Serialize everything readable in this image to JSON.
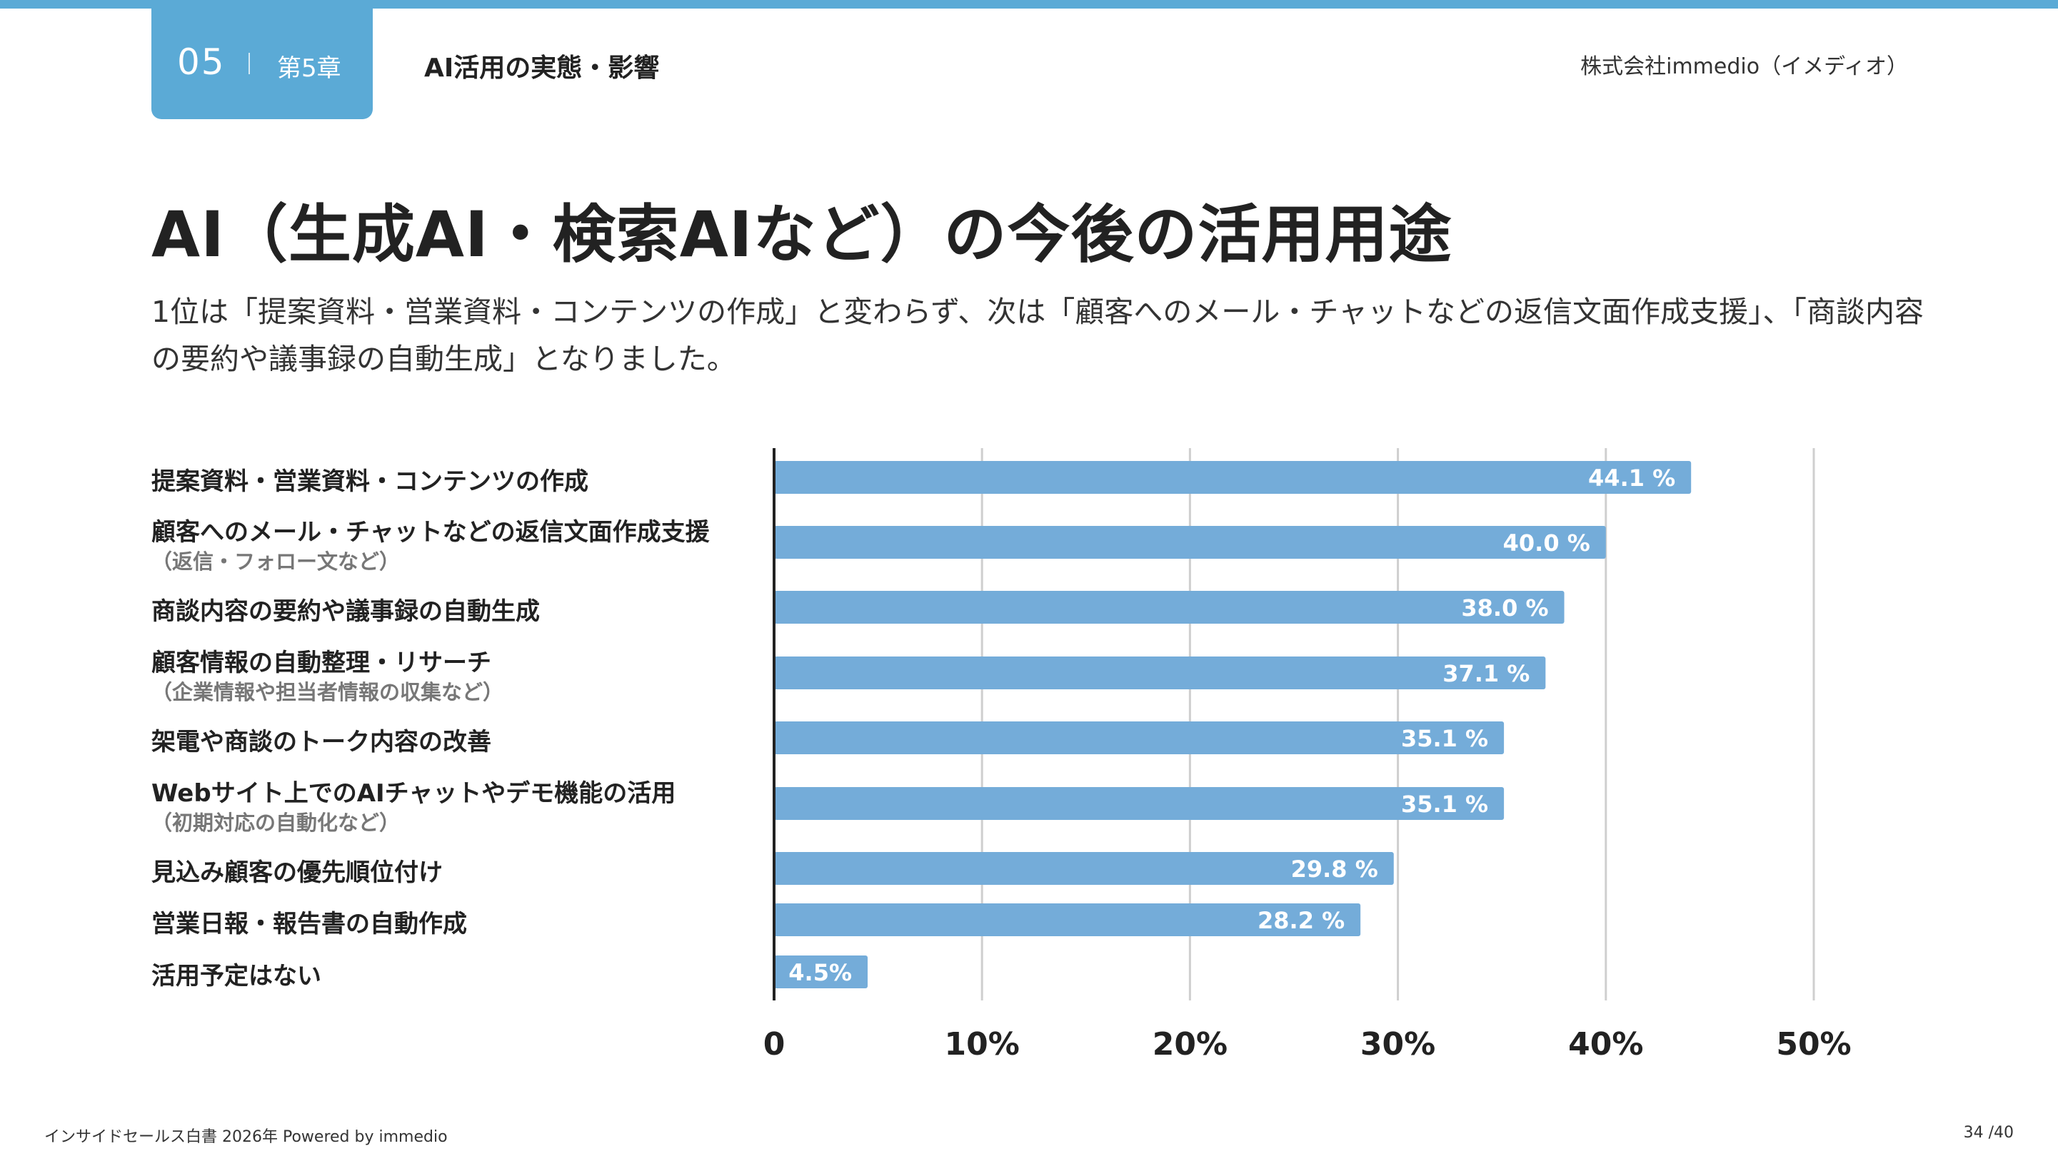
{
  "header": {
    "chapter_number": "05",
    "chapter_label": "第5章",
    "section_title": "AI活用の実態・影響",
    "company": "株式会社immedio（イメディオ）"
  },
  "main_title": "AI（生成AI・検索AIなど）の今後の活用用途",
  "subtitle": "1位は「提案資料・営業資料・コンテンツの作成」と変わらず、次は「顧客へのメール・チャットなどの返信文面作成支援」、「商談内容の要約や議事録の自動生成」となりました。",
  "categories": [
    {
      "main": "提案資料・営業資料・コンテンツの作成",
      "sub": ""
    },
    {
      "main": "顧客へのメール・チャットなどの返信文面作成支援",
      "sub": "（返信・フォロー文など）"
    },
    {
      "main": "商談内容の要約や議事録の自動生成",
      "sub": ""
    },
    {
      "main": "顧客情報の自動整理・リサーチ",
      "sub": "（企業情報や担当者情報の収集など）"
    },
    {
      "main": "架電や商談のトーク内容の改善",
      "sub": ""
    },
    {
      "main": "Webサイト上でのAIチャットやデモ機能の活用",
      "sub": "（初期対応の自動化など）"
    },
    {
      "main": "見込み顧客の優先順位付け",
      "sub": ""
    },
    {
      "main": "営業日報・報告書の自動作成",
      "sub": ""
    },
    {
      "main": "活用予定はない",
      "sub": ""
    }
  ],
  "chart_data": {
    "type": "bar",
    "orientation": "horizontal",
    "categories": [
      "提案資料・営業資料・コンテンツの作成",
      "顧客へのメール・チャットなどの返信文面作成支援（返信・フォロー文など）",
      "商談内容の要約や議事録の自動生成",
      "顧客情報の自動整理・リサーチ（企業情報や担当者情報の収集など）",
      "架電や商談のトーク内容の改善",
      "Webサイト上でのAIチャットやデモ機能の活用（初期対応の自動化など）",
      "見込み顧客の優先順位付け",
      "営業日報・報告書の自動作成",
      "活用予定はない"
    ],
    "values": [
      44.1,
      40.0,
      38.0,
      37.1,
      35.1,
      35.1,
      29.8,
      28.2,
      4.5
    ],
    "value_labels": [
      "44.1 %",
      "40.0 %",
      "38.0 %",
      "37.1 %",
      "35.1 %",
      "35.1 %",
      "29.8 %",
      "28.2 %",
      "4.5%"
    ],
    "xlim": [
      0,
      50
    ],
    "xticks": [
      0,
      10,
      20,
      30,
      40,
      50
    ],
    "xtick_labels": [
      "0",
      "10%",
      "20%",
      "30%",
      "40%",
      "50%"
    ],
    "grid": true,
    "title": "",
    "xlabel": "",
    "ylabel": ""
  },
  "colors": {
    "accent": "#5baad6",
    "bar": "#74acd9",
    "grid": "#cfcfcf",
    "axis": "#222222",
    "bar_label": "#ffffff"
  },
  "footer": {
    "left": "インサイドセールス白書 2026年 Powered by immedio",
    "page": "34 /40"
  }
}
